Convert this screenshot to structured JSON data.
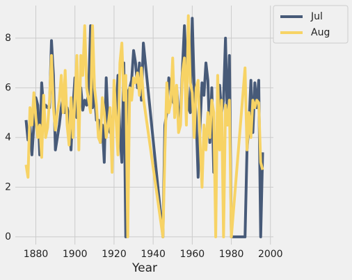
{
  "chart_data": {
    "type": "line",
    "x_label": "Year",
    "x": [
      1875,
      1876,
      1877,
      1878,
      1879,
      1880,
      1881,
      1882,
      1883,
      1884,
      1885,
      1886,
      1887,
      1888,
      1889,
      1890,
      1891,
      1892,
      1893,
      1894,
      1895,
      1896,
      1897,
      1898,
      1899,
      1900,
      1901,
      1902,
      1903,
      1904,
      1905,
      1906,
      1907,
      1908,
      1909,
      1910,
      1911,
      1912,
      1913,
      1914,
      1915,
      1916,
      1917,
      1918,
      1919,
      1920,
      1921,
      1922,
      1923,
      1924,
      1925,
      1926,
      1927,
      1928,
      1929,
      1930,
      1931,
      1932,
      1933,
      1934,
      1935,
      1945,
      1946,
      1947,
      1948,
      1949,
      1950,
      1951,
      1952,
      1953,
      1954,
      1955,
      1956,
      1957,
      1958,
      1959,
      1960,
      1961,
      1962,
      1963,
      1964,
      1965,
      1966,
      1967,
      1968,
      1969,
      1970,
      1971,
      1972,
      1973,
      1974,
      1975,
      1976,
      1977,
      1978,
      1979,
      1980,
      1987,
      1988,
      1989,
      1990,
      1991,
      1992,
      1993,
      1994,
      1995,
      1996
    ],
    "series": [
      {
        "name": "Jul",
        "color": "#475a78",
        "values": [
          4.7,
          3.9,
          4.5,
          3.3,
          4.5,
          5.6,
          5.3,
          3.3,
          6.2,
          5.1,
          5.3,
          5.2,
          5.2,
          7.9,
          6.5,
          3.5,
          4.0,
          4.5,
          5.2,
          5.6,
          5.0,
          5.2,
          4.8,
          3.5,
          5.2,
          6.4,
          4.8,
          6.0,
          6.0,
          5.1,
          5.5,
          5.3,
          5.8,
          8.5,
          5.2,
          5.8,
          4.7,
          4.7,
          3.8,
          4.5,
          3.0,
          6.4,
          4.5,
          4.2,
          4.4,
          5.2,
          4.8,
          6.5,
          4.1,
          3.0,
          7.0,
          0,
          5.8,
          6.0,
          6.3,
          7.5,
          7.0,
          6.0,
          7.0,
          5.5,
          7.8,
          0,
          4.5,
          5.0,
          6.4,
          6.0,
          5.5,
          5.3,
          6.0,
          5.0,
          4.8,
          6.8,
          8.5,
          6.6,
          5.2,
          5.0,
          8.8,
          6.0,
          4.8,
          2.4,
          4.5,
          6.2,
          5.7,
          7.0,
          6.3,
          3.8,
          6.0,
          2.6,
          3.0,
          4.0,
          6.1,
          5.0,
          5.5,
          8.0,
          4.5,
          7.3,
          0,
          0,
          3.5,
          4.5,
          6.3,
          4.2,
          6.2,
          5.2,
          6.3,
          0,
          3.4
        ]
      },
      {
        "name": "Aug",
        "color": "#f7d365",
        "values": [
          2.9,
          2.4,
          5.2,
          4.5,
          5.8,
          4.8,
          4.0,
          4.5,
          3.2,
          5.7,
          4.0,
          4.4,
          5.5,
          7.3,
          5.2,
          4.3,
          5.0,
          5.5,
          6.5,
          5.0,
          6.7,
          4.5,
          3.7,
          5.6,
          4.0,
          5.5,
          7.3,
          3.5,
          7.3,
          6.5,
          8.5,
          6.0,
          5.5,
          5.0,
          8.5,
          6.0,
          5.3,
          4.0,
          3.8,
          5.6,
          5.0,
          4.0,
          4.5,
          5.2,
          2.6,
          6.3,
          4.8,
          3.3,
          7.0,
          7.8,
          5.5,
          6.5,
          0,
          6.0,
          5.5,
          6.4,
          6.2,
          6.6,
          5.7,
          6.8,
          5.6,
          0,
          3.4,
          6.2,
          5.0,
          5.4,
          7.2,
          4.8,
          6.1,
          4.2,
          4.5,
          6.6,
          7.2,
          4.5,
          8.9,
          6.2,
          5.8,
          4.0,
          6.0,
          6.3,
          3.8,
          2.0,
          4.5,
          3.5,
          5.0,
          4.0,
          5.5,
          5.0,
          0,
          6.5,
          3.5,
          5.5,
          0,
          5.3,
          4.5,
          5.5,
          0,
          6.8,
          3.5,
          5.0,
          4.0,
          5.5,
          5.2,
          5.5,
          5.4,
          3.0,
          2.7
        ]
      }
    ],
    "xlim": [
      1869.5,
      2001.5
    ],
    "ylim": [
      -0.31,
      9.31
    ],
    "xticks": [
      1880,
      1900,
      1920,
      1940,
      1960,
      1980,
      2000
    ],
    "yticks": [
      0,
      2,
      4,
      6,
      8
    ],
    "grid": true,
    "legend": "outside-right"
  }
}
